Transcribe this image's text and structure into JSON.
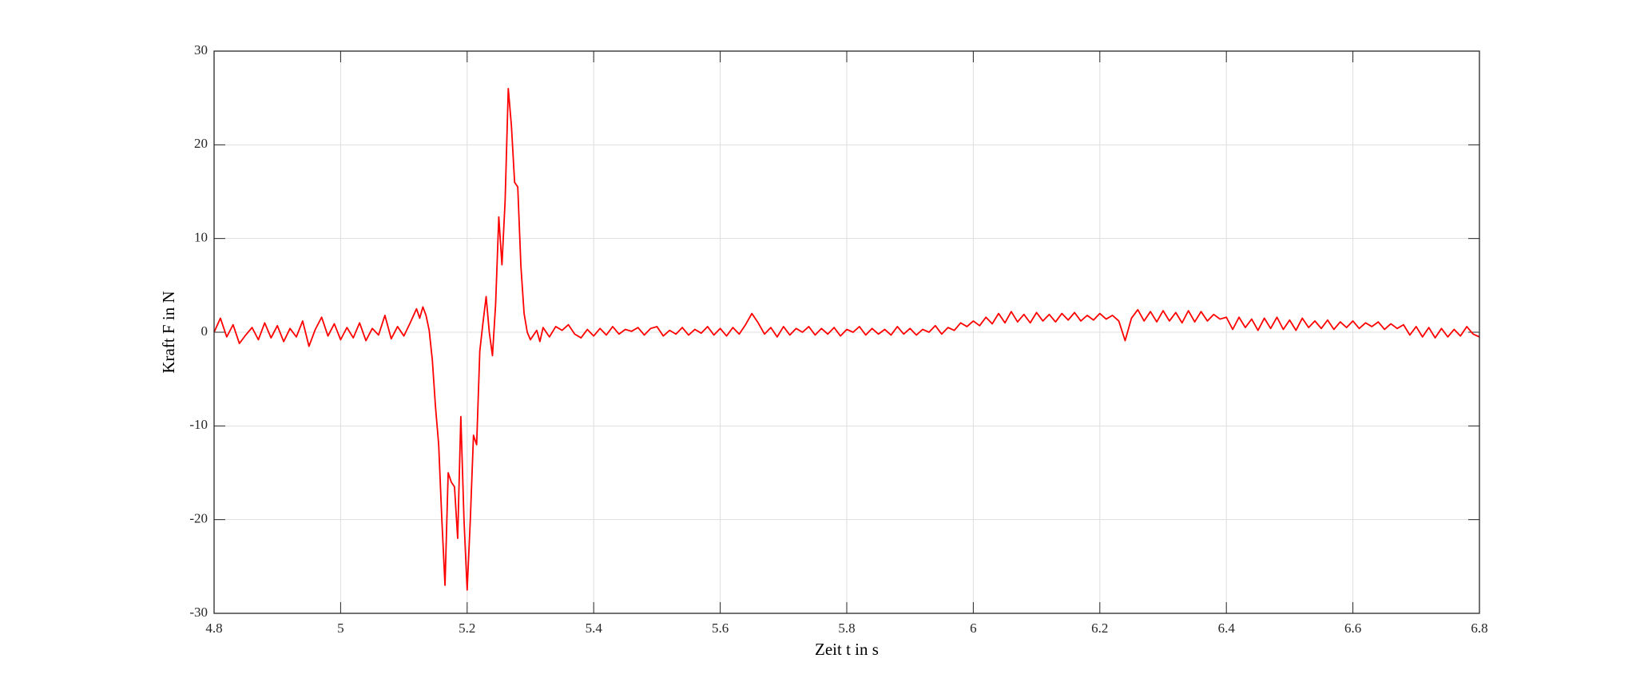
{
  "chart_data": {
    "type": "line",
    "xlabel": "Zeit t in s",
    "ylabel": "Kraft F in N",
    "color": "#ff0000",
    "grid": true,
    "xlim": [
      4.8,
      6.8
    ],
    "xticks": [
      4.8,
      5,
      5.2,
      5.4,
      5.6,
      5.8,
      6,
      6.2,
      6.4,
      6.6,
      6.8
    ],
    "ylim": [
      -30,
      30
    ],
    "yticks": [
      -30,
      -20,
      -10,
      0,
      10,
      20,
      30
    ],
    "x": [
      4.8,
      4.81,
      4.82,
      4.83,
      4.84,
      4.85,
      4.86,
      4.87,
      4.88,
      4.89,
      4.9,
      4.91,
      4.92,
      4.93,
      4.94,
      4.95,
      4.96,
      4.97,
      4.98,
      4.99,
      5.0,
      5.01,
      5.02,
      5.03,
      5.04,
      5.05,
      5.06,
      5.07,
      5.08,
      5.09,
      5.1,
      5.11,
      5.12,
      5.125,
      5.13,
      5.135,
      5.14,
      5.145,
      5.15,
      5.155,
      5.16,
      5.165,
      5.17,
      5.175,
      5.18,
      5.185,
      5.19,
      5.195,
      5.2,
      5.205,
      5.21,
      5.215,
      5.22,
      5.225,
      5.23,
      5.235,
      5.24,
      5.245,
      5.25,
      5.255,
      5.26,
      5.265,
      5.27,
      5.275,
      5.28,
      5.285,
      5.29,
      5.295,
      5.3,
      5.305,
      5.31,
      5.315,
      5.32,
      5.33,
      5.34,
      5.35,
      5.36,
      5.37,
      5.38,
      5.39,
      5.4,
      5.41,
      5.42,
      5.43,
      5.44,
      5.45,
      5.46,
      5.47,
      5.48,
      5.49,
      5.5,
      5.51,
      5.52,
      5.53,
      5.54,
      5.55,
      5.56,
      5.57,
      5.58,
      5.59,
      5.6,
      5.61,
      5.62,
      5.63,
      5.64,
      5.65,
      5.66,
      5.67,
      5.68,
      5.69,
      5.7,
      5.71,
      5.72,
      5.73,
      5.74,
      5.75,
      5.76,
      5.77,
      5.78,
      5.79,
      5.8,
      5.81,
      5.82,
      5.83,
      5.84,
      5.85,
      5.86,
      5.87,
      5.88,
      5.89,
      5.9,
      5.91,
      5.92,
      5.93,
      5.94,
      5.95,
      5.96,
      5.97,
      5.98,
      5.99,
      6.0,
      6.01,
      6.02,
      6.03,
      6.04,
      6.05,
      6.06,
      6.07,
      6.08,
      6.09,
      6.1,
      6.11,
      6.12,
      6.13,
      6.14,
      6.15,
      6.16,
      6.17,
      6.18,
      6.19,
      6.2,
      6.21,
      6.22,
      6.23,
      6.24,
      6.25,
      6.26,
      6.27,
      6.28,
      6.29,
      6.3,
      6.31,
      6.32,
      6.33,
      6.34,
      6.35,
      6.36,
      6.37,
      6.38,
      6.39,
      6.4,
      6.41,
      6.42,
      6.43,
      6.44,
      6.45,
      6.46,
      6.47,
      6.48,
      6.49,
      6.5,
      6.51,
      6.52,
      6.53,
      6.54,
      6.55,
      6.56,
      6.57,
      6.58,
      6.59,
      6.6,
      6.61,
      6.62,
      6.63,
      6.64,
      6.65,
      6.66,
      6.67,
      6.68,
      6.69,
      6.7,
      6.71,
      6.72,
      6.73,
      6.74,
      6.75,
      6.76,
      6.77,
      6.78,
      6.79,
      6.8
    ],
    "values": [
      0,
      1.5,
      -0.5,
      0.8,
      -1.2,
      -0.3,
      0.5,
      -0.8,
      1.0,
      -0.6,
      0.7,
      -1.0,
      0.4,
      -0.5,
      1.2,
      -1.5,
      0.3,
      1.6,
      -0.4,
      0.9,
      -0.8,
      0.5,
      -0.6,
      1.0,
      -0.9,
      0.4,
      -0.3,
      1.8,
      -0.7,
      0.6,
      -0.4,
      1.0,
      2.5,
      1.5,
      2.7,
      1.8,
      0.2,
      -3,
      -8,
      -12,
      -20,
      -27,
      -15,
      -16,
      -16.5,
      -22,
      -9,
      -20,
      -27.5,
      -20,
      -11,
      -12,
      -2,
      1,
      3.8,
      0,
      -2.5,
      3,
      12.3,
      7.2,
      14,
      26,
      22,
      16,
      15.5,
      7,
      2,
      0,
      -0.8,
      -0.3,
      0.2,
      -1,
      0.5,
      -0.5,
      0.6,
      0.2,
      0.8,
      -0.2,
      -0.6,
      0.3,
      -0.4,
      0.4,
      -0.3,
      0.6,
      -0.2,
      0.3,
      0.1,
      0.5,
      -0.3,
      0.4,
      0.6,
      -0.4,
      0.2,
      -0.2,
      0.5,
      -0.3,
      0.3,
      -0.1,
      0.6,
      -0.3,
      0.4,
      -0.4,
      0.5,
      -0.2,
      0.8,
      2.0,
      1.0,
      -0.2,
      0.5,
      -0.5,
      0.6,
      -0.3,
      0.4,
      0.0,
      0.6,
      -0.3,
      0.4,
      -0.2,
      0.5,
      -0.4,
      0.3,
      0.0,
      0.6,
      -0.3,
      0.4,
      -0.2,
      0.3,
      -0.3,
      0.6,
      -0.2,
      0.4,
      -0.3,
      0.3,
      0.0,
      0.7,
      -0.2,
      0.5,
      0.2,
      1.0,
      0.6,
      1.2,
      0.7,
      1.6,
      0.9,
      2.0,
      1.0,
      2.2,
      1.1,
      1.9,
      1.0,
      2.1,
      1.2,
      1.9,
      1.1,
      2.0,
      1.3,
      2.1,
      1.2,
      1.8,
      1.3,
      2.0,
      1.4,
      1.8,
      1.2,
      -0.9,
      1.5,
      2.4,
      1.2,
      2.2,
      1.1,
      2.3,
      1.2,
      2.1,
      1.0,
      2.3,
      1.1,
      2.2,
      1.2,
      1.9,
      1.4,
      1.6,
      0.3,
      1.6,
      0.5,
      1.4,
      0.2,
      1.5,
      0.4,
      1.6,
      0.3,
      1.3,
      0.2,
      1.5,
      0.5,
      1.2,
      0.4,
      1.3,
      0.3,
      1.1,
      0.5,
      1.2,
      0.4,
      1.0,
      0.6,
      1.1,
      0.3,
      0.9,
      0.4,
      0.8,
      -0.3,
      0.6,
      -0.5,
      0.5,
      -0.6,
      0.4,
      -0.5,
      0.3,
      -0.4,
      0.6,
      -0.2,
      -0.5
    ]
  }
}
